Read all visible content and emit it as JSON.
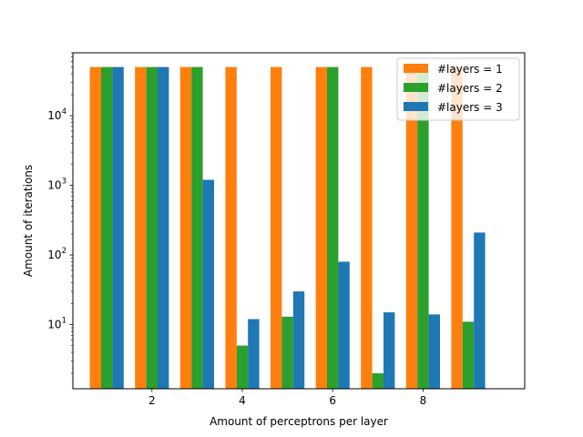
{
  "chart_data": {
    "type": "bar",
    "title": "",
    "xlabel": "Amount of perceptrons per layer",
    "ylabel": "Amount of iterations",
    "yscale": "log",
    "ylim": [
      1.2,
      80000
    ],
    "xlim": [
      0.25,
      10.25
    ],
    "x": [
      1,
      2,
      3,
      4,
      5,
      6,
      7,
      8,
      9
    ],
    "x_ticks": [
      2,
      4,
      6,
      8
    ],
    "y_ticks": [
      {
        "value": 10,
        "base": "10",
        "exp": "1"
      },
      {
        "value": 100,
        "base": "10",
        "exp": "2"
      },
      {
        "value": 1000,
        "base": "10",
        "exp": "3"
      },
      {
        "value": 10000,
        "base": "10",
        "exp": "4"
      }
    ],
    "legend_position": "top-right",
    "grid": false,
    "series": [
      {
        "name": "#layers = 1",
        "color": "#ff7f0e",
        "values": [
          50000,
          50000,
          50000,
          50000,
          50000,
          50000,
          50000,
          50000,
          50000
        ]
      },
      {
        "name": "#layers = 2",
        "color": "#2ca02c",
        "values": [
          50000,
          50000,
          50000,
          5,
          13,
          50000,
          2,
          50000,
          11
        ]
      },
      {
        "name": "#layers = 3",
        "color": "#1f77b4",
        "values": [
          50000,
          50000,
          1200,
          12,
          30,
          80,
          15,
          14,
          210
        ]
      }
    ]
  }
}
